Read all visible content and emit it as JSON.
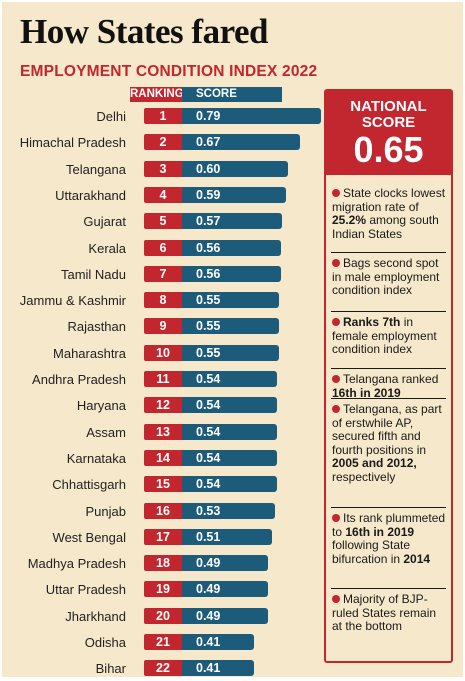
{
  "title": "How States fared",
  "subtitle": "EMPLOYMENT CONDITION INDEX 2022",
  "headers": {
    "ranking": "RANKING",
    "score": "SCORE"
  },
  "chart_data": {
    "type": "bar",
    "orientation": "horizontal",
    "title": "How States fared",
    "subtitle": "EMPLOYMENT CONDITION INDEX 2022",
    "categories": [
      "Delhi",
      "Himachal Pradesh",
      "Telangana",
      "Uttarakhand",
      "Gujarat",
      "Kerala",
      "Tamil Nadu",
      "Jammu & Kashmir",
      "Rajasthan",
      "Maharashtra",
      "Andhra Pradesh",
      "Haryana",
      "Assam",
      "Karnataka",
      "Chhattisgarh",
      "Punjab",
      "West Bengal",
      "Madhya Pradesh",
      "Uttar Pradesh",
      "Jharkhand",
      "Odisha",
      "Bihar"
    ],
    "ranks": [
      "1",
      "2",
      "3",
      "4",
      "5",
      "6",
      "7",
      "8",
      "9",
      "10",
      "11",
      "12",
      "13",
      "14",
      "15",
      "16",
      "17",
      "18",
      "19",
      "20",
      "21",
      "22"
    ],
    "values": [
      0.79,
      0.67,
      0.6,
      0.59,
      0.57,
      0.56,
      0.56,
      0.55,
      0.55,
      0.55,
      0.54,
      0.54,
      0.54,
      0.54,
      0.54,
      0.53,
      0.51,
      0.49,
      0.49,
      0.49,
      0.41,
      0.41
    ],
    "value_labels": [
      "0.79",
      "0.67",
      "0.60",
      "0.59",
      "0.57",
      "0.56",
      "0.56",
      "0.55",
      "0.55",
      "0.55",
      "0.54",
      "0.54",
      "0.54",
      "0.54",
      "0.54",
      "0.53",
      "0.51",
      "0.49",
      "0.49",
      "0.49",
      "0.41",
      "0.41"
    ],
    "colors": {
      "rank": "#c2262e",
      "score": "#1c5b7a",
      "background": "#f6e8cb"
    }
  },
  "national": {
    "label_line1": "NATIONAL",
    "label_line2": "SCORE",
    "value": "0.65"
  },
  "notes": [
    {
      "parts": [
        {
          "t": "State clocks lowest migration rate of "
        },
        {
          "t": "25.2%",
          "b": true
        },
        {
          "t": " among south Indian States"
        }
      ]
    },
    {
      "parts": [
        {
          "t": "Bags second spot in male employment condition index"
        }
      ]
    },
    {
      "parts": [
        {
          "t": "Ranks 7th",
          "b": true
        },
        {
          "t": " in female employment condition index"
        }
      ]
    },
    {
      "parts": [
        {
          "t": "Telangana ranked "
        },
        {
          "t": "16th in 2019",
          "b": true
        }
      ]
    },
    {
      "parts": [
        {
          "t": "Telangana, as part of erstwhile AP, secured fifth and fourth positions in "
        },
        {
          "t": "2005 and 2012,",
          "b": true
        },
        {
          "t": " respectively"
        }
      ]
    },
    {
      "parts": [
        {
          "t": "Its rank plummeted to "
        },
        {
          "t": "16th in 2019",
          "b": true
        },
        {
          "t": " following State bifurcation in "
        },
        {
          "t": "2014",
          "b": true
        }
      ]
    },
    {
      "parts": [
        {
          "t": "Majority of BJP-ruled States remain at the bottom"
        }
      ]
    }
  ]
}
